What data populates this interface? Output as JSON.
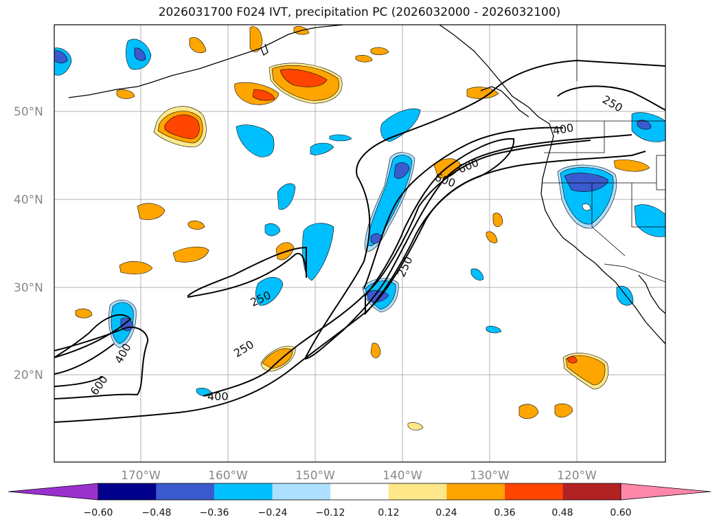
{
  "title": "2026031700 F024 IVT, precipitation PC (2026032000 - 2026032100)",
  "latitude_labels": [
    "50°N",
    "40°N",
    "30°N",
    "20°N"
  ],
  "longitude_labels": [
    "170°W",
    "160°W",
    "150°W",
    "140°W",
    "130°W",
    "120°W"
  ],
  "colorbar": {
    "tick_labels": [
      "−0.60",
      "−0.48",
      "−0.36",
      "−0.24",
      "−0.12",
      "0.12",
      "0.24",
      "0.36",
      "0.48",
      "0.60"
    ],
    "colors": [
      "#9932CC",
      "#00008B",
      "#3A5BCF",
      "#00BFFF",
      "#ADDFFF",
      "#FFFFFF",
      "#FFE88A",
      "#FFA500",
      "#FF4500",
      "#B22222",
      "#FF88AA"
    ]
  },
  "ivt_contour_labels": [
    "250",
    "250",
    "250",
    "400",
    "400",
    "400",
    "600",
    "600",
    "600",
    "250"
  ],
  "colors": {
    "land_line": "#000000",
    "grid": "#b0b0b0"
  }
}
